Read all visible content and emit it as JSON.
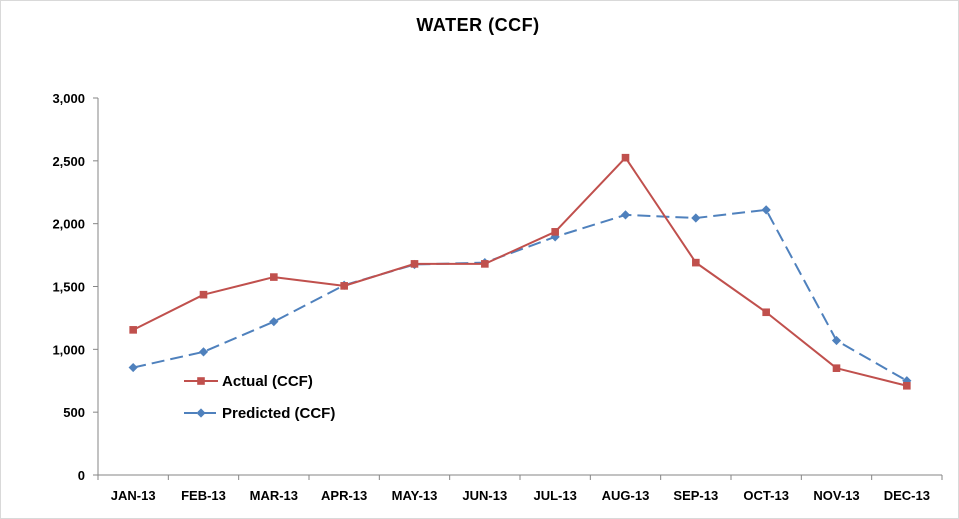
{
  "chart_data": {
    "type": "line",
    "title": "WATER (CCF)",
    "xlabel": "",
    "ylabel": "",
    "categories": [
      "JAN-13",
      "FEB-13",
      "MAR-13",
      "APR-13",
      "MAY-13",
      "JUN-13",
      "JUL-13",
      "AUG-13",
      "SEP-13",
      "OCT-13",
      "NOV-13",
      "DEC-13"
    ],
    "y_ticks": [
      "0",
      "500",
      "1,000",
      "1,500",
      "2,000",
      "2,500",
      "3,000"
    ],
    "ylim": [
      0,
      3000
    ],
    "grid": false,
    "legend_position": "bottom-left",
    "series": [
      {
        "name": "Actual (CCF)",
        "color": "#c0504d",
        "line_style": "solid",
        "marker": "square",
        "values": [
          1155,
          1435,
          1575,
          1505,
          1680,
          1680,
          1935,
          2525,
          1690,
          1295,
          850,
          710
        ]
      },
      {
        "name": "Predicted (CCF)",
        "color": "#4f81bd",
        "line_style": "dashed",
        "marker": "diamond",
        "values": [
          855,
          980,
          1220,
          1510,
          1675,
          1690,
          1895,
          2070,
          2045,
          2110,
          1070,
          750
        ]
      }
    ]
  }
}
